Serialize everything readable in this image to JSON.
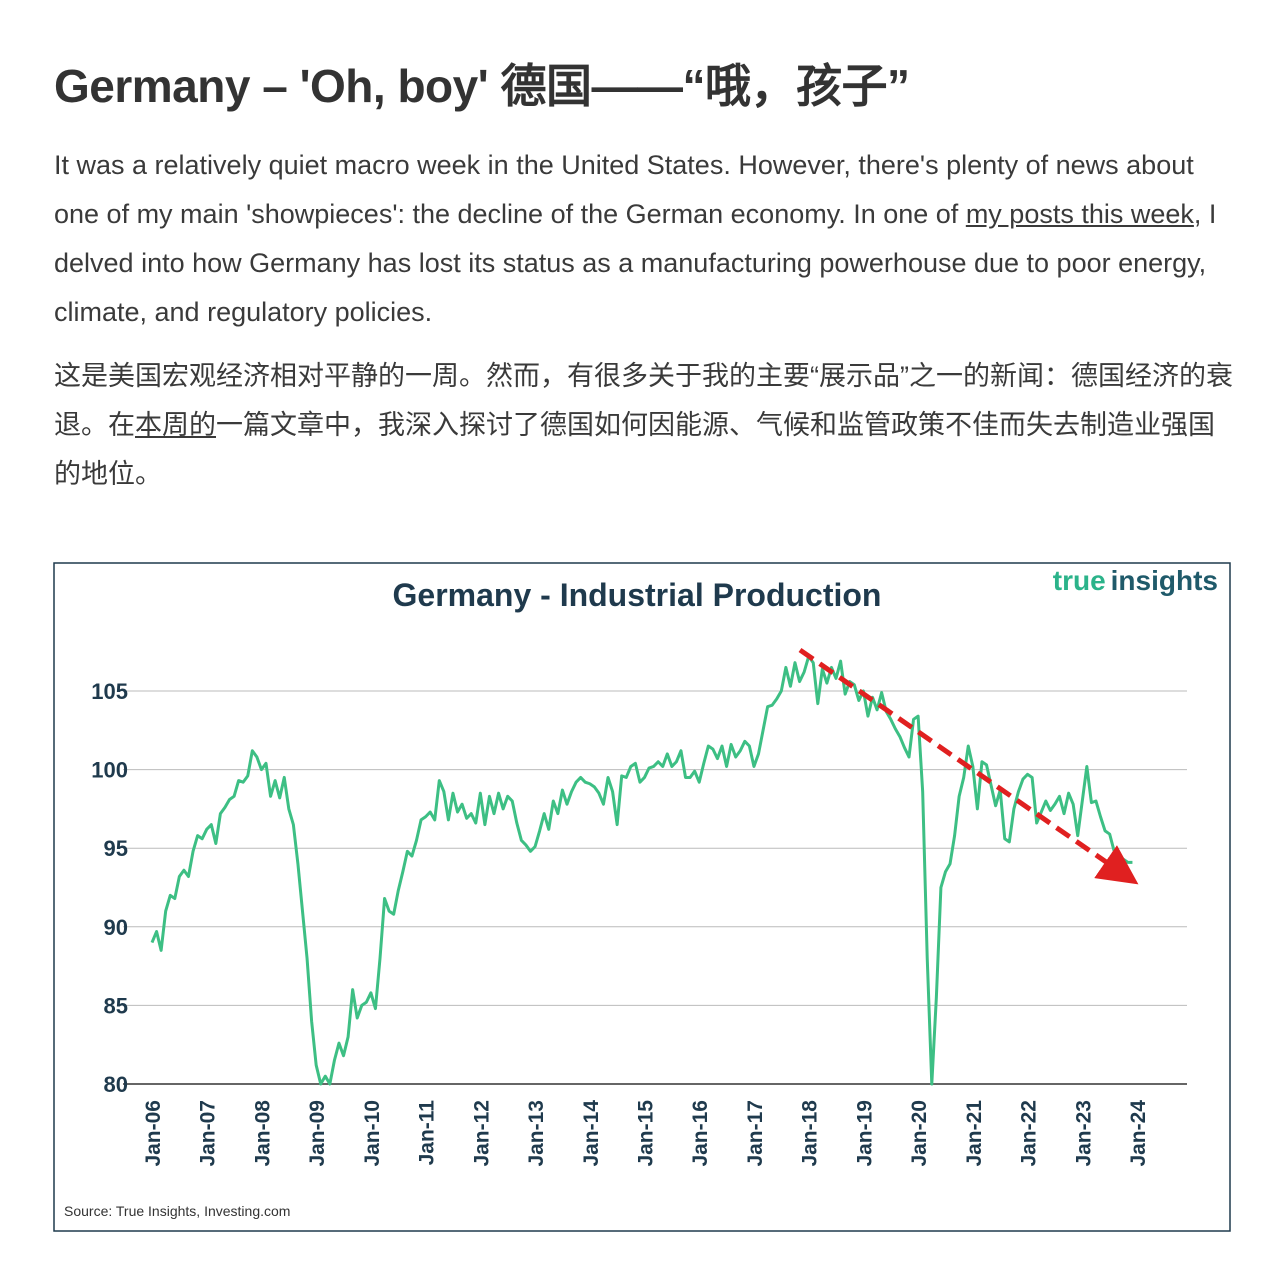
{
  "article": {
    "title": "Germany – 'Oh, boy' 德国——“哦，孩子”",
    "paragraph_en": [
      "It was a relatively quiet macro week in the United States. However, there's plenty of news about one of my main 'showpieces': the decline of the German economy. In one of ",
      "my posts this week",
      ", I delved into how Germany has lost its status as a manufacturing powerhouse due to poor energy, climate, and regulatory policies."
    ],
    "paragraph_zh": [
      "这是美国宏观经济相对平静的一周。然而，有很多关于我的主要“展示品”之一的新闻：德国经济的衰退。在",
      "本周的",
      "一篇文章中，我深入探讨了德国如何因能源、气候和监管政策不佳而失去制造业强国的地位。"
    ]
  },
  "chart_data": {
    "type": "line",
    "title": "Germany - Industrial Production",
    "logo": [
      "true",
      "insights"
    ],
    "source": "Source: True Insights, Investing.com",
    "color": "#3dbf84",
    "grid": true,
    "ylim": [
      80,
      108
    ],
    "yticks": [
      80,
      85,
      90,
      95,
      100,
      105
    ],
    "categories": [
      "Jan-06",
      null,
      null,
      null,
      null,
      null,
      null,
      null,
      null,
      null,
      null,
      null,
      "Jan-07",
      null,
      null,
      null,
      null,
      null,
      null,
      null,
      null,
      null,
      null,
      null,
      "Jan-08",
      null,
      null,
      null,
      null,
      null,
      null,
      null,
      null,
      null,
      null,
      null,
      "Jan-09",
      null,
      null,
      null,
      null,
      null,
      null,
      null,
      null,
      null,
      null,
      null,
      "Jan-10",
      null,
      null,
      null,
      null,
      null,
      null,
      null,
      null,
      null,
      null,
      null,
      "Jan-11",
      null,
      null,
      null,
      null,
      null,
      null,
      null,
      null,
      null,
      null,
      null,
      "Jan-12",
      null,
      null,
      null,
      null,
      null,
      null,
      null,
      null,
      null,
      null,
      null,
      "Jan-13",
      null,
      null,
      null,
      null,
      null,
      null,
      null,
      null,
      null,
      null,
      null,
      "Jan-14",
      null,
      null,
      null,
      null,
      null,
      null,
      null,
      null,
      null,
      null,
      null,
      "Jan-15",
      null,
      null,
      null,
      null,
      null,
      null,
      null,
      null,
      null,
      null,
      null,
      "Jan-16",
      null,
      null,
      null,
      null,
      null,
      null,
      null,
      null,
      null,
      null,
      null,
      "Jan-17",
      null,
      null,
      null,
      null,
      null,
      null,
      null,
      null,
      null,
      null,
      null,
      "Jan-18",
      null,
      null,
      null,
      null,
      null,
      null,
      null,
      null,
      null,
      null,
      null,
      "Jan-19",
      null,
      null,
      null,
      null,
      null,
      null,
      null,
      null,
      null,
      null,
      null,
      "Jan-20",
      null,
      null,
      null,
      null,
      null,
      null,
      null,
      null,
      null,
      null,
      null,
      "Jan-21",
      null,
      null,
      null,
      null,
      null,
      null,
      null,
      null,
      null,
      null,
      null,
      "Jan-22",
      null,
      null,
      null,
      null,
      null,
      null,
      null,
      null,
      null,
      null,
      null,
      "Jan-23",
      null,
      null,
      null,
      null,
      null,
      null,
      null,
      null,
      null,
      null,
      null,
      "Jan-24"
    ],
    "values": [
      89,
      89.7,
      88.5,
      91,
      92,
      91.8,
      93.2,
      93.6,
      93.2,
      94.8,
      95.8,
      95.6,
      96.2,
      96.5,
      95.3,
      97.2,
      97.6,
      98.1,
      98.3,
      99.3,
      99.2,
      99.6,
      101.2,
      100.8,
      100,
      100.4,
      98.3,
      99.3,
      98.2,
      99.5,
      97.5,
      96.5,
      94,
      91,
      88,
      84,
      81.2,
      80,
      80.5,
      80,
      81.5,
      82.6,
      81.8,
      83,
      86,
      84.2,
      85,
      85.2,
      85.8,
      84.8,
      88,
      91.8,
      91,
      90.8,
      92.3,
      93.5,
      94.8,
      94.5,
      95.5,
      96.8,
      97,
      97.3,
      96.8,
      99.3,
      98.6,
      96.8,
      98.5,
      97.3,
      97.8,
      96.9,
      97.2,
      96.6,
      98.5,
      96.5,
      98.3,
      97.2,
      98.5,
      97.5,
      98.3,
      98,
      96.6,
      95.5,
      95.2,
      94.8,
      95.1,
      96.1,
      97.2,
      96.2,
      98,
      97.2,
      98.7,
      97.8,
      98.6,
      99.2,
      99.5,
      99.2,
      99.1,
      98.9,
      98.5,
      97.8,
      99.5,
      98.6,
      96.5,
      99.6,
      99.5,
      100.2,
      100.4,
      99.2,
      99.5,
      100.1,
      100.2,
      100.5,
      100.2,
      101,
      100.2,
      100.5,
      101.2,
      99.5,
      99.5,
      99.9,
      99.2,
      100.4,
      101.5,
      101.3,
      100.7,
      101.5,
      100.2,
      101.6,
      100.8,
      101.2,
      101.8,
      101.5,
      100.2,
      101,
      102.5,
      104,
      104.1,
      104.5,
      105,
      106.5,
      105.3,
      106.8,
      105.6,
      106.2,
      107.2,
      106.8,
      104.2,
      106.4,
      105.5,
      106.5,
      105.8,
      106.9,
      104.8,
      105.6,
      105.4,
      104.4,
      105,
      103.4,
      104.6,
      103.8,
      104.9,
      103.7,
      103.2,
      102.6,
      102.1,
      101.4,
      100.8,
      103.2,
      103.4,
      98.6,
      88,
      80,
      85.5,
      92.5,
      93.5,
      94,
      95.8,
      98.3,
      99.5,
      101.5,
      100.2,
      97.5,
      100.5,
      100.3,
      99,
      97.7,
      98.7,
      95.6,
      95.4,
      97.5,
      98.6,
      99.4,
      99.7,
      99.5,
      96.6,
      97.3,
      98,
      97.4,
      97.8,
      98.3,
      97.2,
      98.5,
      97.8,
      95.8,
      98,
      100.2,
      97.9,
      98,
      97,
      96.1,
      95.9,
      94.8,
      94.5,
      94.3,
      94.1,
      94.1,
      null
    ]
  }
}
